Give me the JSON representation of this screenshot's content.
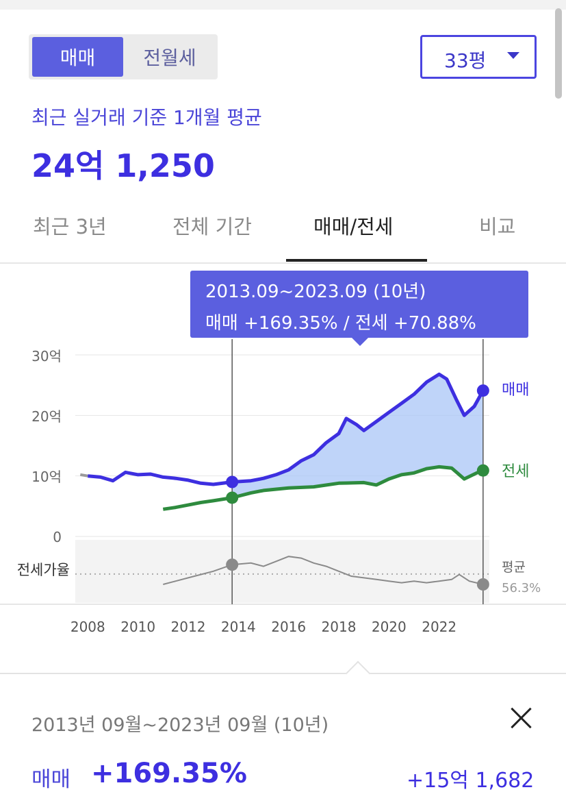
{
  "toggle": {
    "sale_label": "매매",
    "lease_label": "전월세"
  },
  "area_select": {
    "value": "33평"
  },
  "summary": {
    "subtitle": "최근 실거래 기준 1개월 평균",
    "price": "24억 1,250"
  },
  "tabs": [
    {
      "label": "최근 3년",
      "active": false
    },
    {
      "label": "전체 기간",
      "active": false
    },
    {
      "label": "매매/전세",
      "active": true
    },
    {
      "label": "비교",
      "active": false
    }
  ],
  "tooltip": {
    "line1": "2013.09~2023.09 (10년)",
    "line2": "매매 +169.35%  /  전세 +70.88%"
  },
  "colors": {
    "sale": "#3d2fe0",
    "lease": "#2e8b3e",
    "ratio": "#8a8a8a",
    "accent": "#5b5fdf"
  },
  "chart_data": {
    "type": "line",
    "title": "",
    "x_ticks": [
      "2008",
      "2010",
      "2012",
      "2014",
      "2016",
      "2018",
      "2020",
      "2022"
    ],
    "y_ticks": [
      "0",
      "10억",
      "20억",
      "30억"
    ],
    "ylim": [
      0,
      30
    ],
    "xlim": [
      2007.5,
      2024
    ],
    "ratio_label": "전세가율",
    "ratio_avg_label": "평균",
    "ratio_avg_value": "56.3%",
    "selection": {
      "start": 2013.75,
      "end": 2023.75
    },
    "series": [
      {
        "name": "매매",
        "unit": "억",
        "points": [
          [
            2007.7,
            10.2
          ],
          [
            2008.0,
            10.0
          ],
          [
            2008.5,
            9.8
          ],
          [
            2009.0,
            9.2
          ],
          [
            2009.5,
            10.6
          ],
          [
            2010.0,
            10.2
          ],
          [
            2010.5,
            10.3
          ],
          [
            2011.0,
            9.8
          ],
          [
            2011.5,
            9.6
          ],
          [
            2012.0,
            9.3
          ],
          [
            2012.5,
            8.8
          ],
          [
            2013.0,
            8.6
          ],
          [
            2013.75,
            9.0
          ],
          [
            2014.5,
            9.2
          ],
          [
            2015.0,
            9.6
          ],
          [
            2015.5,
            10.2
          ],
          [
            2016.0,
            11.0
          ],
          [
            2016.5,
            12.5
          ],
          [
            2017.0,
            13.5
          ],
          [
            2017.5,
            15.5
          ],
          [
            2018.0,
            17.0
          ],
          [
            2018.3,
            19.5
          ],
          [
            2018.7,
            18.5
          ],
          [
            2019.0,
            17.5
          ],
          [
            2019.5,
            19.0
          ],
          [
            2020.0,
            20.5
          ],
          [
            2020.5,
            22.0
          ],
          [
            2021.0,
            23.5
          ],
          [
            2021.5,
            25.5
          ],
          [
            2022.0,
            26.8
          ],
          [
            2022.3,
            26.0
          ],
          [
            2022.7,
            22.5
          ],
          [
            2023.0,
            20.0
          ],
          [
            2023.4,
            21.5
          ],
          [
            2023.75,
            24.1
          ]
        ]
      },
      {
        "name": "전세",
        "unit": "억",
        "points": [
          [
            2011.0,
            4.5
          ],
          [
            2011.5,
            4.8
          ],
          [
            2012.0,
            5.2
          ],
          [
            2012.5,
            5.6
          ],
          [
            2013.0,
            5.9
          ],
          [
            2013.75,
            6.4
          ],
          [
            2014.5,
            7.2
          ],
          [
            2015.0,
            7.6
          ],
          [
            2016.0,
            8.0
          ],
          [
            2017.0,
            8.2
          ],
          [
            2018.0,
            8.8
          ],
          [
            2019.0,
            8.9
          ],
          [
            2019.5,
            8.5
          ],
          [
            2020.0,
            9.5
          ],
          [
            2020.5,
            10.2
          ],
          [
            2021.0,
            10.5
          ],
          [
            2021.5,
            11.2
          ],
          [
            2022.0,
            11.5
          ],
          [
            2022.5,
            11.3
          ],
          [
            2023.0,
            9.5
          ],
          [
            2023.5,
            10.5
          ],
          [
            2023.75,
            10.9
          ]
        ]
      },
      {
        "name": "전세가율",
        "unit": "%",
        "points": [
          [
            2011.0,
            50
          ],
          [
            2011.5,
            52
          ],
          [
            2012.0,
            54
          ],
          [
            2012.5,
            56
          ],
          [
            2013.0,
            58
          ],
          [
            2013.75,
            62
          ],
          [
            2014.5,
            63
          ],
          [
            2015.0,
            61
          ],
          [
            2015.5,
            64
          ],
          [
            2016.0,
            67
          ],
          [
            2016.5,
            66
          ],
          [
            2017.0,
            63
          ],
          [
            2017.5,
            61
          ],
          [
            2018.0,
            58
          ],
          [
            2018.5,
            55
          ],
          [
            2019.0,
            54
          ],
          [
            2019.5,
            53
          ],
          [
            2020.0,
            52
          ],
          [
            2020.5,
            51
          ],
          [
            2021.0,
            52
          ],
          [
            2021.5,
            51
          ],
          [
            2022.0,
            52
          ],
          [
            2022.5,
            53
          ],
          [
            2022.8,
            56
          ],
          [
            2023.2,
            52
          ],
          [
            2023.75,
            50
          ]
        ]
      }
    ]
  },
  "detail": {
    "range_text": "2013년 09월~2023년 09월 (10년)",
    "sale_label": "매매",
    "sale_pct": "+169.35%",
    "sale_amount": "+15억 1,682"
  }
}
